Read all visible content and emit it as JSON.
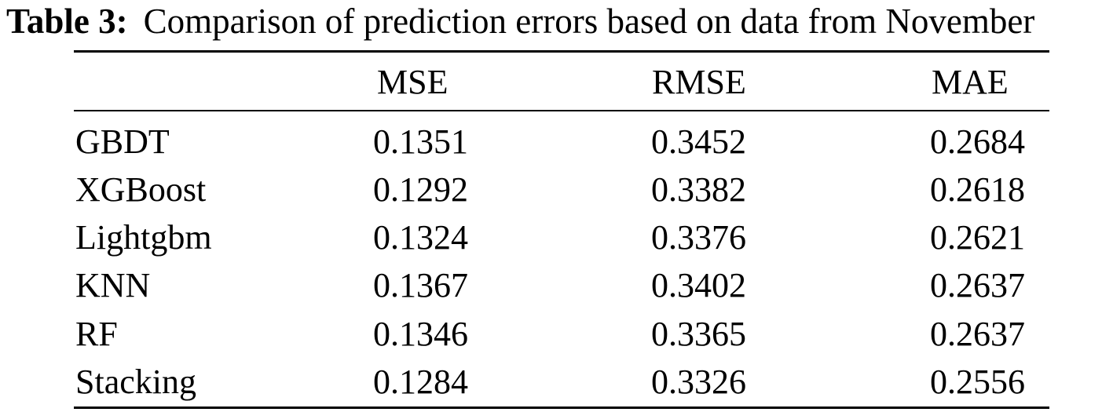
{
  "caption": {
    "label": "Table 3:",
    "text": "Comparison of prediction errors based on data from November"
  },
  "table": {
    "headers": [
      "",
      "MSE",
      "RMSE",
      "MAE"
    ],
    "rows": [
      {
        "model": "GBDT",
        "mse": "0.1351",
        "rmse": "0.3452",
        "mae": "0.2684"
      },
      {
        "model": "XGBoost",
        "mse": "0.1292",
        "rmse": "0.3382",
        "mae": "0.2618"
      },
      {
        "model": "Lightgbm",
        "mse": "0.1324",
        "rmse": "0.3376",
        "mae": "0.2621"
      },
      {
        "model": "KNN",
        "mse": "0.1367",
        "rmse": "0.3402",
        "mae": "0.2637"
      },
      {
        "model": "RF",
        "mse": "0.1346",
        "rmse": "0.3365",
        "mae": "0.2637"
      },
      {
        "model": "Stacking",
        "mse": "0.1284",
        "rmse": "0.3326",
        "mae": "0.2556"
      }
    ]
  }
}
